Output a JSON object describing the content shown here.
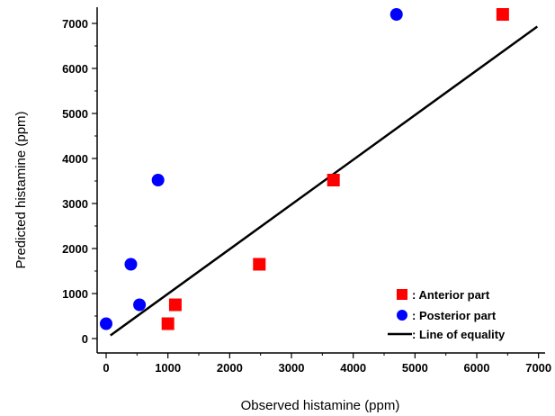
{
  "chart_data": {
    "type": "scatter",
    "xlabel": "Observed histamine (ppm)",
    "ylabel": "Predicted histamine (ppm)",
    "xlim": [
      -150,
      7200
    ],
    "ylim": [
      -100,
      7300
    ],
    "x_ticks": [
      0,
      1000,
      2000,
      3000,
      4000,
      5000,
      6000,
      7000
    ],
    "y_ticks": [
      0,
      1000,
      2000,
      3000,
      4000,
      5000,
      6000,
      7000
    ],
    "grid": false,
    "legend_position": "bottom-right",
    "series": [
      {
        "name": ": Anterior part",
        "marker": "square",
        "color": "#ff0000",
        "points": [
          {
            "x": 1000,
            "y": 330
          },
          {
            "x": 1120,
            "y": 750
          },
          {
            "x": 2480,
            "y": 1650
          },
          {
            "x": 3680,
            "y": 3520
          },
          {
            "x": 6420,
            "y": 7200
          }
        ]
      },
      {
        "name": ": Posterior part",
        "marker": "circle",
        "color": "#0000ff",
        "points": [
          {
            "x": 0,
            "y": 330
          },
          {
            "x": 400,
            "y": 1650
          },
          {
            "x": 540,
            "y": 750
          },
          {
            "x": 840,
            "y": 3520
          },
          {
            "x": 4700,
            "y": 7200
          }
        ]
      }
    ],
    "reference_line": {
      "name": ": Line of equality",
      "color": "#000000",
      "from": [
        70,
        70
      ],
      "to": [
        6980,
        6930
      ]
    }
  }
}
